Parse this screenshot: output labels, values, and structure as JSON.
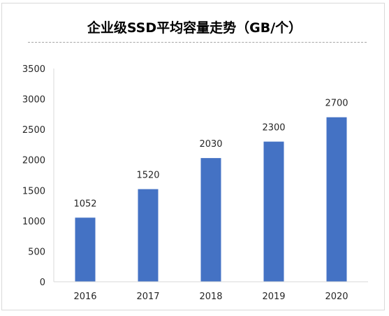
{
  "chart_data": {
    "type": "bar",
    "title": "企业级SSD平均容量走势（GB/个）",
    "categories": [
      "2016",
      "2017",
      "2018",
      "2019",
      "2020"
    ],
    "values": [
      1052,
      1520,
      2030,
      2300,
      2700
    ],
    "ylim": [
      0,
      3500
    ],
    "yticks": [
      0,
      500,
      1000,
      1500,
      2000,
      2500,
      3000,
      3500
    ],
    "grid": false,
    "data_labels": true,
    "bar_color": "#4472c4",
    "legend": "none"
  }
}
